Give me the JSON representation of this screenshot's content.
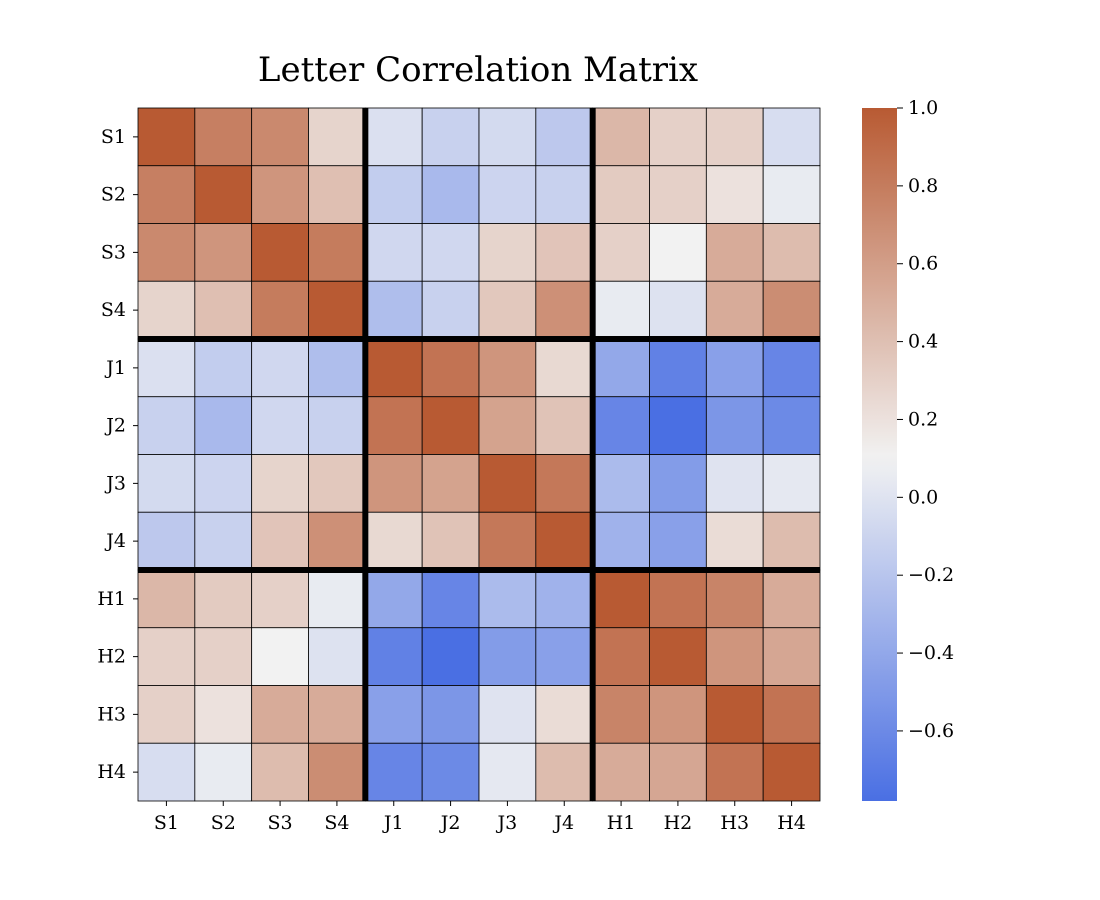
{
  "chart_data": {
    "type": "heatmap",
    "title": "Letter Correlation Matrix",
    "xlabel": "",
    "ylabel": "",
    "row_labels": [
      "S1",
      "S2",
      "S3",
      "S4",
      "J1",
      "J2",
      "J3",
      "J4",
      "H1",
      "H2",
      "H3",
      "H4"
    ],
    "col_labels": [
      "S1",
      "S2",
      "S3",
      "S4",
      "J1",
      "J2",
      "J3",
      "J4",
      "H1",
      "H2",
      "H3",
      "H4"
    ],
    "values": [
      [
        1.0,
        0.78,
        0.72,
        0.28,
        -0.02,
        -0.12,
        -0.06,
        -0.18,
        0.45,
        0.3,
        0.3,
        -0.04
      ],
      [
        0.78,
        1.0,
        0.65,
        0.4,
        -0.15,
        -0.28,
        -0.1,
        -0.12,
        0.33,
        0.3,
        0.2,
        0.05
      ],
      [
        0.72,
        0.65,
        1.0,
        0.8,
        -0.08,
        -0.08,
        0.28,
        0.37,
        0.3,
        0.1,
        0.52,
        0.42
      ],
      [
        0.28,
        0.4,
        0.8,
        1.0,
        -0.25,
        -0.12,
        0.35,
        0.68,
        0.05,
        -0.01,
        0.52,
        0.7
      ],
      [
        -0.02,
        -0.15,
        -0.08,
        -0.25,
        1.0,
        0.85,
        0.65,
        0.25,
        -0.4,
        -0.66,
        -0.45,
        -0.63
      ],
      [
        -0.12,
        -0.28,
        -0.08,
        -0.12,
        0.85,
        1.0,
        0.57,
        0.38,
        -0.63,
        -0.78,
        -0.52,
        -0.6
      ],
      [
        -0.06,
        -0.1,
        0.28,
        0.35,
        0.65,
        0.57,
        1.0,
        0.82,
        -0.27,
        -0.48,
        0.0,
        0.03
      ],
      [
        -0.18,
        -0.12,
        0.37,
        0.68,
        0.25,
        0.38,
        0.82,
        1.0,
        -0.33,
        -0.45,
        0.23,
        0.42
      ],
      [
        0.45,
        0.33,
        0.3,
        0.05,
        -0.4,
        -0.63,
        -0.27,
        -0.33,
        1.0,
        0.85,
        0.75,
        0.52
      ],
      [
        0.3,
        0.3,
        0.1,
        -0.01,
        -0.66,
        -0.78,
        -0.48,
        -0.45,
        0.85,
        1.0,
        0.65,
        0.55
      ],
      [
        0.3,
        0.2,
        0.52,
        0.52,
        -0.45,
        -0.52,
        0.0,
        0.23,
        0.75,
        0.65,
        1.0,
        0.85
      ],
      [
        -0.04,
        0.05,
        0.42,
        0.7,
        -0.63,
        -0.6,
        0.03,
        0.42,
        0.52,
        0.55,
        0.85,
        1.0
      ]
    ],
    "group_boundaries": [
      4,
      8
    ],
    "colorbar": {
      "min": -0.78,
      "max": 1.0,
      "center": 0.1,
      "ticks": [
        1.0,
        0.8,
        0.6,
        0.4,
        0.2,
        0.0,
        -0.2,
        -0.4,
        -0.6
      ],
      "tick_labels": [
        "1.0",
        "0.8",
        "0.6",
        "0.4",
        "0.2",
        "0.0",
        "−0.2",
        "−0.4",
        "−0.6"
      ]
    },
    "colors": {
      "low": "#4a6fe3",
      "center": "#f2f2f2",
      "high": "#b85a33"
    },
    "grid": true,
    "legend": "none"
  }
}
